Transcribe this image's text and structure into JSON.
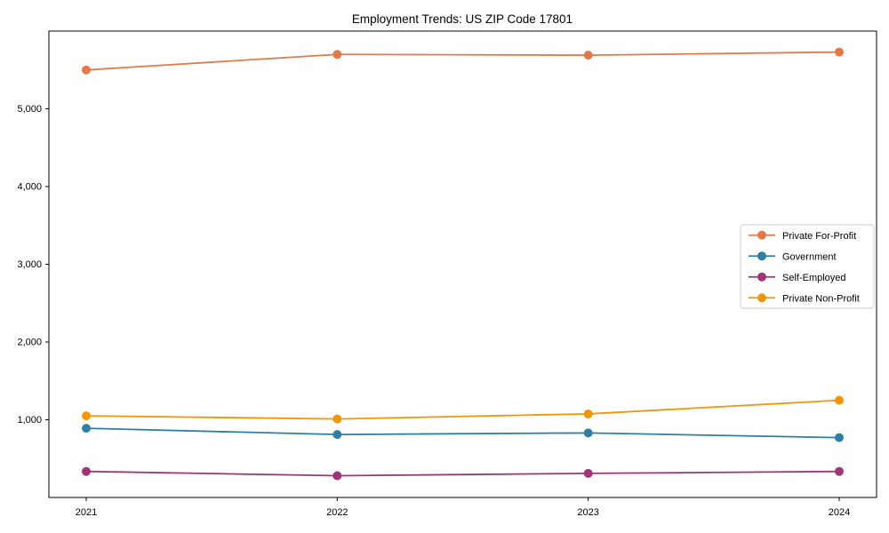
{
  "chart_data": {
    "type": "line",
    "title": "Employment Trends: US ZIP Code 17801",
    "xlabel": "",
    "ylabel": "",
    "x": [
      2021,
      2022,
      2023,
      2024
    ],
    "x_tick_labels": [
      "2021",
      "2022",
      "2023",
      "2024"
    ],
    "series": [
      {
        "name": "Private For-Profit",
        "color": "#e2794a",
        "values": [
          5500,
          5700,
          5690,
          5730
        ]
      },
      {
        "name": "Government",
        "color": "#2e7fa2",
        "values": [
          890,
          810,
          830,
          770
        ]
      },
      {
        "name": "Self-Employed",
        "color": "#a13478",
        "values": [
          335,
          280,
          310,
          335
        ]
      },
      {
        "name": "Private Non-Profit",
        "color": "#f0950c",
        "values": [
          1050,
          1010,
          1075,
          1250
        ]
      }
    ],
    "ylim": [
      0,
      6000
    ],
    "yticks": [
      1000,
      2000,
      3000,
      4000,
      5000
    ],
    "ytick_labels": [
      "1,000",
      "2,000",
      "3,000",
      "4,000",
      "5,000"
    ],
    "grid": false,
    "legend": {
      "position": "right-center",
      "border_color": "#cccccc",
      "background": "#ffffff"
    },
    "marker": "circle",
    "axis_color": "#000000"
  }
}
